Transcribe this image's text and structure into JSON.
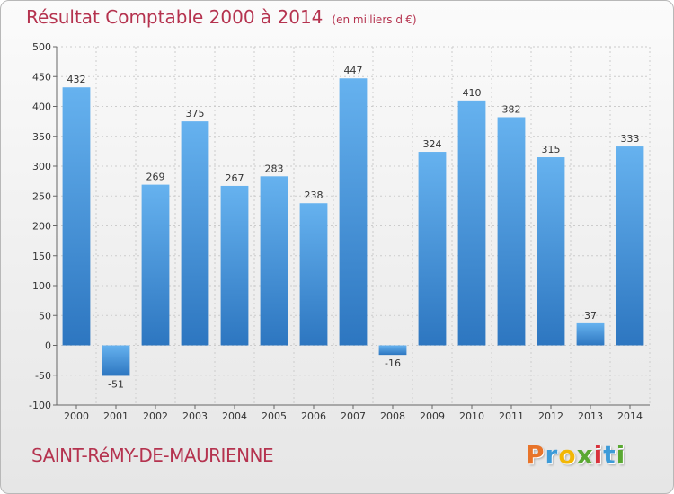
{
  "header": {
    "title": "Résultat Comptable 2000 à 2014",
    "subtitle": "(en milliers d'€)"
  },
  "footer": {
    "city": "SAINT-RéMY-DE-MAURIENNE",
    "logo_letters": [
      "P",
      "r",
      "o",
      "x",
      "i",
      "t",
      "i"
    ],
    "logo_colors": [
      "#e8742a",
      "#3d9bd8",
      "#f2b705",
      "#5aa832",
      "#d8323c",
      "#3d9bd8",
      "#5aa832"
    ]
  },
  "colors": {
    "bar": "#3a8fd9",
    "bar_light": "#66b2ef",
    "bar_dark": "#2d76c0",
    "title": "#b5334f",
    "grid": "#cccccc"
  },
  "chart_data": {
    "type": "bar",
    "title": "Résultat Comptable 2000 à 2014",
    "subtitle": "(en milliers d'€)",
    "xlabel": "",
    "ylabel": "",
    "categories": [
      "2000",
      "2001",
      "2002",
      "2003",
      "2004",
      "2005",
      "2006",
      "2007",
      "2008",
      "2009",
      "2010",
      "2011",
      "2012",
      "2013",
      "2014"
    ],
    "values": [
      432,
      -51,
      269,
      375,
      267,
      283,
      238,
      447,
      -16,
      324,
      410,
      382,
      315,
      37,
      333
    ],
    "ylim": [
      -100,
      500
    ],
    "yticks": [
      -100,
      -50,
      0,
      50,
      100,
      150,
      200,
      250,
      300,
      350,
      400,
      450,
      500
    ],
    "grid": true
  }
}
